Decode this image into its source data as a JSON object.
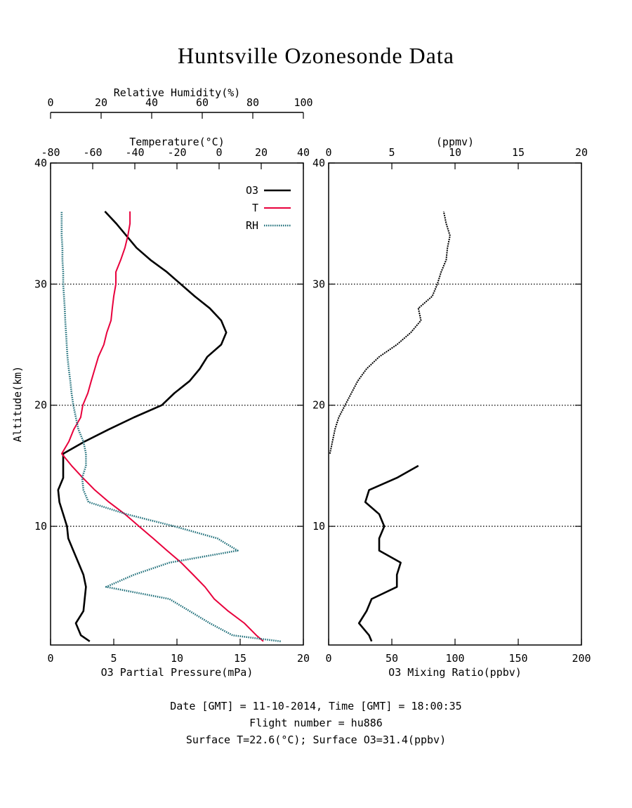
{
  "title": "Huntsville Ozonesonde Data",
  "footer": [
    "Date [GMT] = 11-10-2014,  Time [GMT] = 18:00:35",
    "Flight number = hu886",
    "Surface T=22.6(°C); Surface O3=31.4(ppbv)"
  ],
  "chart_data": [
    {
      "type": "line",
      "ylabel": "Altitude(km)",
      "ylim": [
        0.2,
        40
      ],
      "yticks": [
        10,
        20,
        30,
        40
      ],
      "grid": true,
      "legend": "upper right",
      "xlabel": "O3 Partial Pressure(mPa)",
      "xlim": [
        0,
        20
      ],
      "xticks": [
        0,
        5,
        10,
        15,
        20
      ],
      "x2label": "Temperature(°C)",
      "x2lim": [
        -80,
        40
      ],
      "x2ticks": [
        -80,
        -60,
        -40,
        -20,
        0,
        20,
        40
      ],
      "x3label": "Relative Humidity(%)",
      "x3lim": [
        0,
        100
      ],
      "x3ticks": [
        0,
        20,
        40,
        60,
        80,
        100
      ],
      "y": [
        0.5,
        1,
        2,
        3,
        4,
        5,
        6,
        7,
        8,
        9,
        10,
        11,
        12,
        13,
        14,
        15,
        16,
        17,
        18,
        19,
        20,
        21,
        22,
        23,
        24,
        25,
        26,
        27,
        28,
        29,
        30,
        31,
        32,
        33,
        34,
        35,
        36
      ],
      "series": [
        {
          "name": "O3",
          "color": "#000000",
          "axis": "x",
          "values": [
            3.1,
            2.4,
            2.0,
            2.6,
            2.7,
            2.8,
            2.6,
            2.2,
            1.8,
            1.4,
            1.3,
            1.0,
            0.7,
            0.6,
            1.0,
            1.0,
            1.0,
            2.7,
            4.6,
            6.6,
            8.8,
            9.8,
            11.0,
            11.8,
            12.4,
            13.5,
            13.9,
            13.5,
            12.6,
            11.4,
            10.3,
            9.2,
            7.9,
            6.8,
            6.0,
            5.2,
            4.3
          ]
        },
        {
          "name": "T",
          "color": "#e8003c",
          "axis": "x2",
          "values": [
            21,
            17.7,
            12,
            4.3,
            -2.3,
            -6.7,
            -12.3,
            -18,
            -24.7,
            -31.3,
            -38,
            -44.7,
            -52.3,
            -59,
            -64.7,
            -70,
            -74.7,
            -71.3,
            -69,
            -65.7,
            -64.7,
            -62.3,
            -60.7,
            -59,
            -57.3,
            -54.7,
            -53.3,
            -51.3,
            -50.7,
            -50,
            -49,
            -49,
            -46.7,
            -44.7,
            -43.3,
            -42.3,
            -42.3
          ]
        },
        {
          "name": "RH",
          "color": "#1f6f7a",
          "axis": "x3",
          "values": [
            91,
            72,
            63,
            55,
            47,
            22,
            33,
            47,
            74,
            66,
            49,
            30,
            15,
            13,
            12.5,
            14,
            14,
            13,
            11,
            10,
            9,
            8.3,
            7.8,
            7.2,
            6.7,
            6.4,
            6.1,
            5.8,
            5.6,
            5.3,
            5,
            5,
            4.7,
            4.7,
            4.4,
            4.4,
            4.4
          ]
        }
      ]
    },
    {
      "type": "line",
      "ylim": [
        0.2,
        40
      ],
      "yticks": [
        10,
        20,
        30,
        40
      ],
      "grid": true,
      "xlabel": "O3 Mixing Ratio(ppbv)",
      "xlim": [
        0,
        200
      ],
      "xticks": [
        0,
        50,
        100,
        150,
        200
      ],
      "x2label": "(ppmv)",
      "x2lim": [
        0,
        20
      ],
      "x2ticks": [
        0,
        5,
        10,
        15,
        20
      ],
      "y": [
        0.5,
        1,
        2,
        3,
        4,
        5,
        6,
        7,
        8,
        9,
        10,
        11,
        12,
        13,
        14,
        15,
        16,
        17,
        18,
        19,
        20,
        21,
        22,
        23,
        24,
        25,
        26,
        27,
        28,
        29,
        30,
        31,
        32,
        33,
        34,
        35,
        36
      ],
      "series": [
        {
          "color": "#000000",
          "axis": "x",
          "values": [
            34,
            32,
            24,
            30,
            34,
            54,
            54,
            57,
            40,
            40,
            44,
            40,
            29,
            32,
            54,
            71,
            null,
            null,
            null,
            null,
            null,
            null,
            null,
            null,
            null,
            null,
            null,
            null,
            null,
            null,
            null,
            null,
            null,
            null,
            null,
            null,
            null
          ]
        },
        {
          "color": "#000000",
          "axis": "x2",
          "values": [
            null,
            null,
            null,
            null,
            null,
            null,
            null,
            null,
            null,
            null,
            null,
            null,
            null,
            null,
            null,
            null,
            0.1,
            0.3,
            0.5,
            0.8,
            1.3,
            1.8,
            2.3,
            3.0,
            4.0,
            5.4,
            6.5,
            7.3,
            7.1,
            8.2,
            8.6,
            8.9,
            9.3,
            9.4,
            9.6,
            9.3,
            9.1
          ]
        }
      ]
    }
  ]
}
